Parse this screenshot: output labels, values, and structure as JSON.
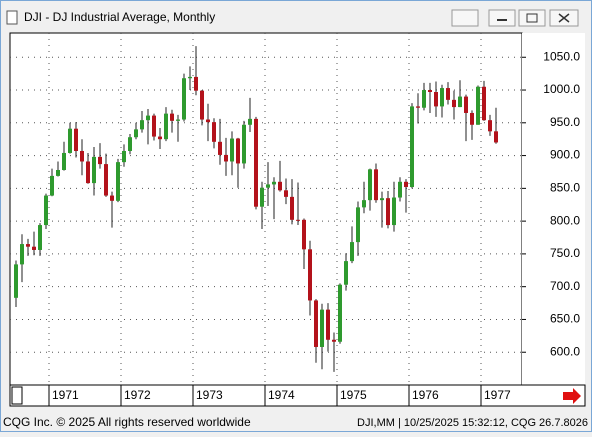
{
  "title": "DJI - DJ Industrial Average, Monthly",
  "footer": {
    "left": "CQG Inc. © 2025 All rights reserved worldwide",
    "right": "DJI,MM | 10/25/2025 15:32:12, CQG 26.7.8026"
  },
  "chart_data": {
    "type": "candlestick",
    "categories": [
      null,
      null,
      null,
      null,
      null,
      null,
      "1971",
      null,
      null,
      null,
      null,
      null,
      null,
      null,
      null,
      null,
      null,
      null,
      "1972",
      null,
      null,
      null,
      null,
      null,
      null,
      null,
      null,
      null,
      null,
      null,
      "1973",
      null,
      null,
      null,
      null,
      null,
      null,
      null,
      null,
      null,
      null,
      null,
      "1974",
      null,
      null,
      null,
      null,
      null,
      null,
      null,
      null,
      null,
      null,
      null,
      "1975",
      null,
      null,
      null,
      null,
      null,
      null,
      null,
      null,
      null,
      null,
      null,
      "1976",
      null,
      null,
      null,
      null,
      null,
      null,
      null,
      null,
      null,
      null,
      null,
      "1977",
      null,
      null
    ],
    "open": [
      683,
      734,
      765,
      761,
      756,
      794,
      839,
      869,
      878,
      904,
      941,
      907,
      891,
      858,
      898,
      887,
      839,
      831,
      890,
      907,
      928,
      940,
      954,
      961,
      929,
      925,
      964,
      953,
      955,
      1018,
      1020,
      999,
      955,
      951,
      921,
      901,
      891,
      926,
      888,
      947,
      956,
      822,
      851,
      856,
      860,
      847,
      837,
      802,
      802,
      757,
      679,
      608,
      665,
      619,
      616,
      703,
      739,
      768,
      821,
      832,
      879,
      832,
      835,
      794,
      836,
      860,
      852,
      975,
      973,
      1000,
      997,
      975,
      1003,
      985,
      974,
      990,
      965,
      947,
      1005,
      954,
      937
    ],
    "high": [
      740,
      780,
      773,
      784,
      797,
      842,
      880,
      891,
      921,
      950,
      951,
      925,
      904,
      913,
      919,
      903,
      845,
      895,
      917,
      933,
      950,
      968,
      971,
      964,
      942,
      974,
      970,
      962,
      1025,
      1036,
      1067,
      1000,
      979,
      957,
      956,
      927,
      937,
      927,
      953,
      988,
      959,
      860,
      890,
      867,
      892,
      865,
      864,
      859,
      804,
      770,
      681,
      674,
      675,
      630,
      705,
      751,
      792,
      830,
      860,
      880,
      888,
      845,
      846,
      860,
      867,
      864,
      980,
      995,
      1011,
      1011,
      1013,
      1008,
      1012,
      999,
      1015,
      993,
      969,
      1007,
      1014,
      962,
      973
    ],
    "low": [
      669,
      707,
      747,
      748,
      747,
      788,
      838,
      868,
      877,
      903,
      897,
      870,
      857,
      839,
      880,
      837,
      790,
      829,
      883,
      902,
      925,
      935,
      917,
      923,
      910,
      922,
      935,
      921,
      952,
      1000,
      992,
      946,
      922,
      911,
      886,
      869,
      870,
      851,
      880,
      936,
      818,
      788,
      823,
      803,
      845,
      826,
      795,
      794,
      727,
      656,
      584,
      574,
      601,
      570,
      613,
      694,
      736,
      747,
      812,
      816,
      828,
      790,
      789,
      784,
      830,
      813,
      850,
      949,
      969,
      965,
      959,
      958,
      978,
      955,
      974,
      922,
      924,
      947,
      953,
      930,
      918
    ],
    "close": [
      734,
      765,
      761,
      756,
      794,
      839,
      869,
      878,
      904,
      941,
      907,
      891,
      858,
      898,
      887,
      839,
      831,
      890,
      907,
      928,
      940,
      954,
      961,
      929,
      925,
      964,
      953,
      955,
      1018,
      1020,
      999,
      955,
      951,
      921,
      901,
      891,
      926,
      888,
      947,
      956,
      822,
      851,
      856,
      860,
      847,
      837,
      802,
      801,
      757,
      679,
      608,
      665,
      619,
      616,
      703,
      739,
      768,
      821,
      832,
      879,
      832,
      835,
      794,
      836,
      860,
      852,
      975,
      973,
      1000,
      997,
      975,
      1003,
      985,
      974,
      990,
      965,
      947,
      1005,
      954,
      937,
      920
    ],
    "up_color": "#2e9a2e",
    "down_color": "#b3121b",
    "ylim": [
      550,
      1087
    ],
    "yticks": [
      {
        "value": 600,
        "label": "600.0"
      },
      {
        "value": 650,
        "label": "650.0"
      },
      {
        "value": 700,
        "label": "700.0"
      },
      {
        "value": 750,
        "label": "750.0"
      },
      {
        "value": 800,
        "label": "800.0"
      },
      {
        "value": 850,
        "label": "850.0"
      },
      {
        "value": 900,
        "label": "900.0"
      },
      {
        "value": 950,
        "label": "950.0"
      },
      {
        "value": 1000,
        "label": "1000.0"
      },
      {
        "value": 1050,
        "label": "1050.0"
      }
    ],
    "grid": true
  }
}
